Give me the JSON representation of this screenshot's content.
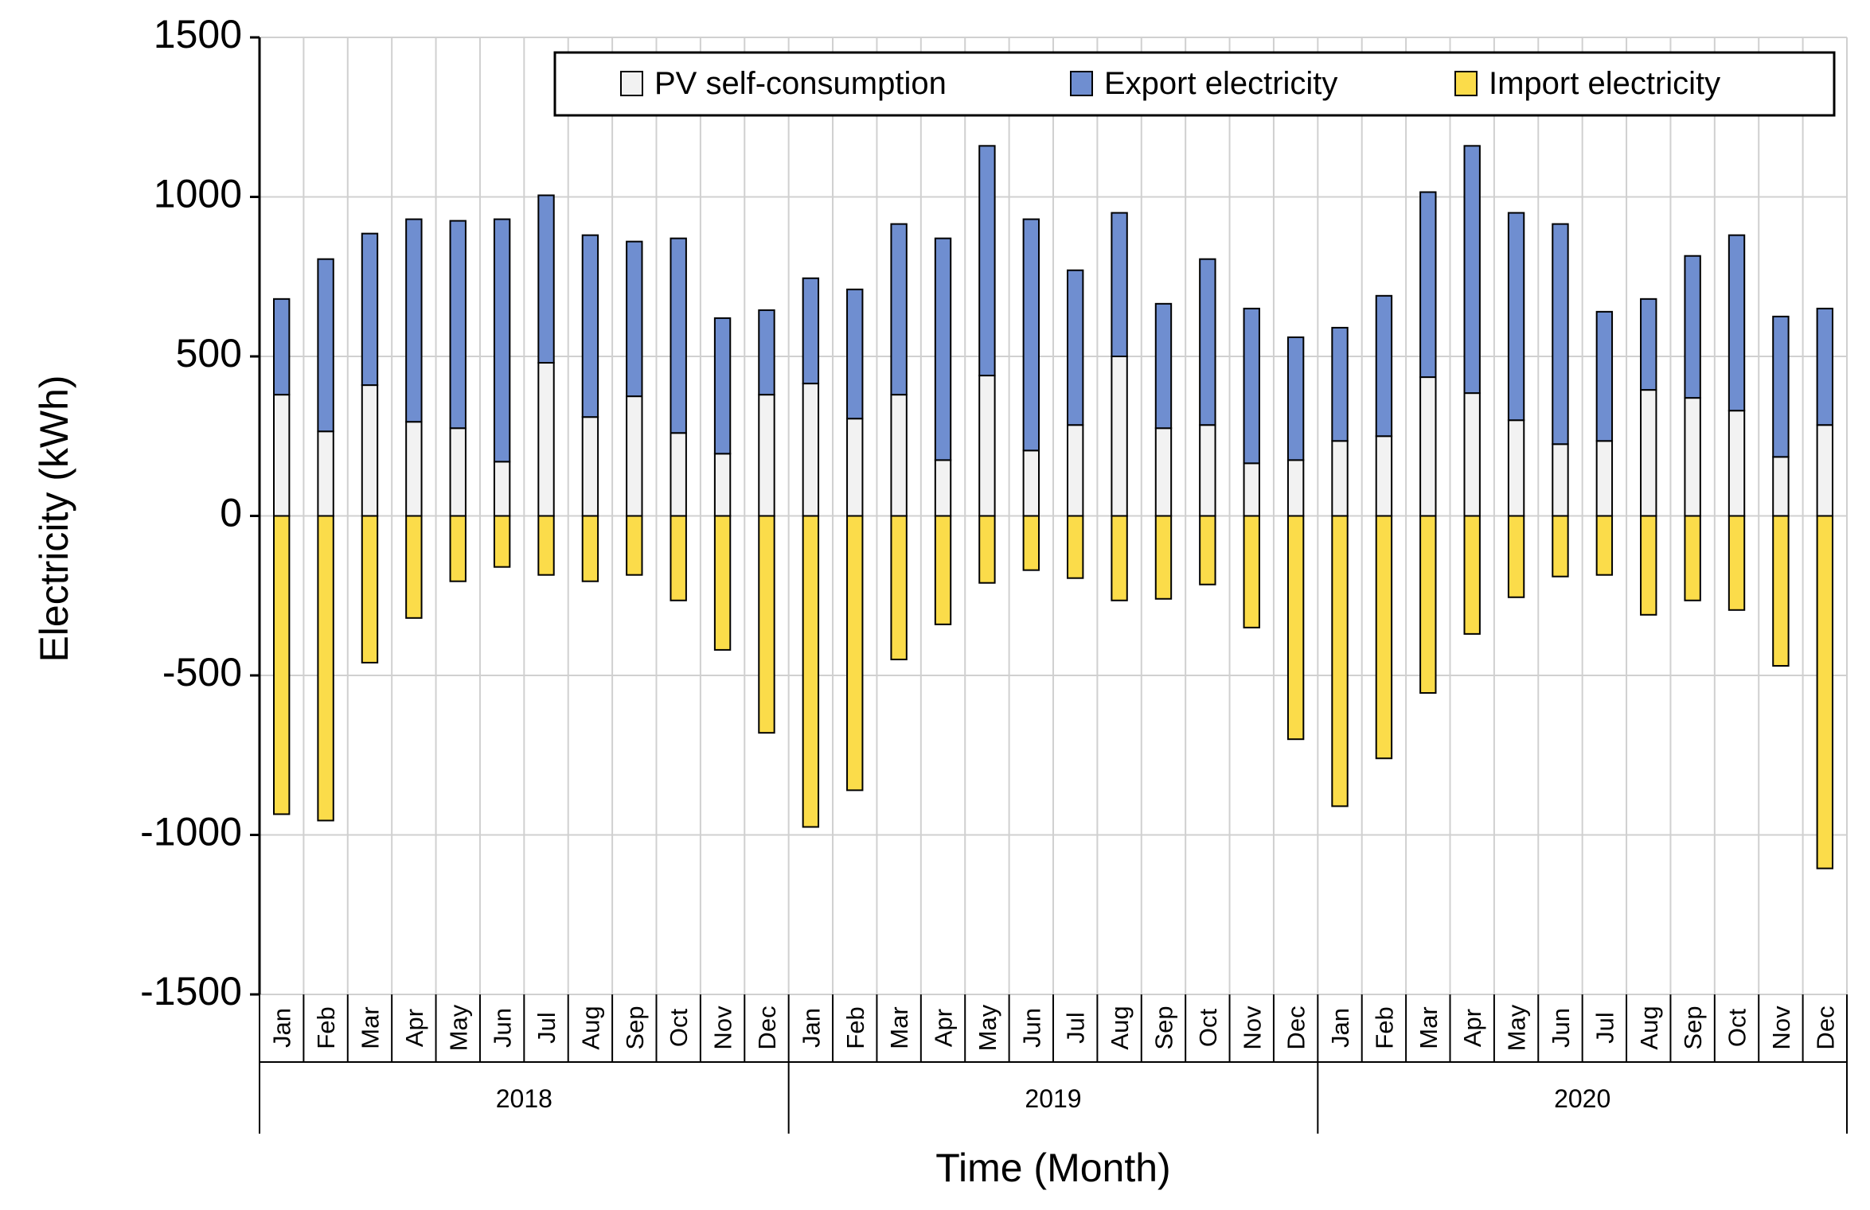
{
  "chart_data": {
    "type": "bar",
    "stacked": true,
    "title": "",
    "xlabel": "Time (Month)",
    "ylabel": "Electricity (kWh)",
    "ylim": [
      -1500,
      1500
    ],
    "yticks": [
      1500,
      1000,
      500,
      0,
      -500,
      -1000,
      -1500
    ],
    "months": [
      "Jan",
      "Feb",
      "Mar",
      "Apr",
      "May",
      "Jun",
      "Jul",
      "Aug",
      "Sep",
      "Oct",
      "Nov",
      "Dec"
    ],
    "years": [
      "2018",
      "2019",
      "2020"
    ],
    "legend_position": "top-right",
    "series": [
      {
        "name": "PV self-consumption",
        "color": "#f2f2f2",
        "values": [
          380,
          265,
          410,
          295,
          275,
          170,
          480,
          310,
          375,
          260,
          195,
          380,
          415,
          305,
          380,
          175,
          440,
          205,
          285,
          500,
          275,
          285,
          165,
          175,
          235,
          250,
          435,
          385,
          300,
          225,
          235,
          395,
          370,
          330,
          185,
          285
        ]
      },
      {
        "name": "Export electricity",
        "color": "#6f8ed0",
        "values": [
          300,
          540,
          475,
          635,
          650,
          760,
          525,
          570,
          485,
          610,
          425,
          265,
          330,
          405,
          535,
          695,
          720,
          725,
          485,
          450,
          390,
          520,
          485,
          385,
          355,
          440,
          580,
          775,
          650,
          690,
          405,
          285,
          445,
          550,
          440,
          365
        ]
      },
      {
        "name": "Import electricity",
        "color": "#fbdc4a",
        "values": [
          -935,
          -955,
          -460,
          -320,
          -205,
          -160,
          -185,
          -205,
          -185,
          -265,
          -420,
          -680,
          -975,
          -860,
          -450,
          -340,
          -210,
          -170,
          -195,
          -265,
          -260,
          -215,
          -350,
          -700,
          -910,
          -760,
          -555,
          -370,
          -255,
          -190,
          -185,
          -310,
          -265,
          -295,
          -470,
          -1105
        ]
      }
    ]
  }
}
